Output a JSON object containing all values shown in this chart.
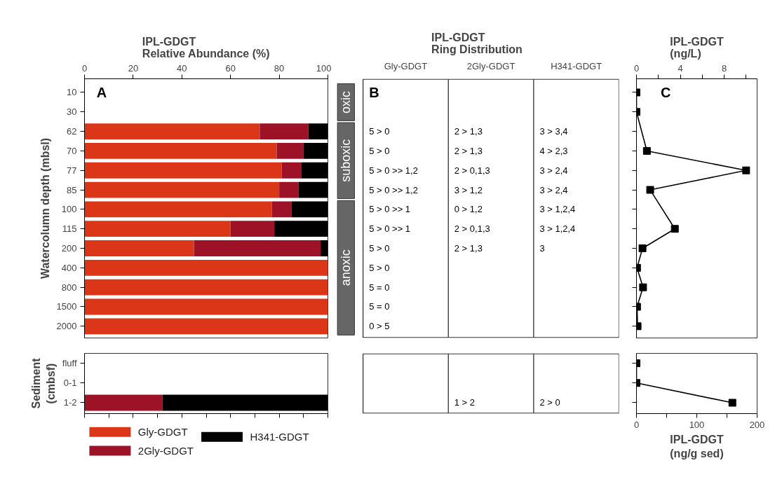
{
  "chart_data": [
    {
      "type": "bar",
      "orientation": "horizontal",
      "stacked": true,
      "title": "IPL-GDGT\nRelative Abundance (%)",
      "ylabel": "Watercolumn depth (mbsl)",
      "annotations": [
        "A"
      ],
      "categories": [
        "10",
        "30",
        "62",
        "70",
        "77",
        "85",
        "100",
        "115",
        "200",
        "400",
        "800",
        "1500",
        "2000"
      ],
      "series": [
        {
          "name": "Gly-GDGT",
          "color": "#dc3618",
          "values": [
            null,
            null,
            72,
            79,
            81,
            80,
            77,
            60,
            45,
            100,
            100,
            100,
            100
          ]
        },
        {
          "name": "2Gly-GDGT",
          "color": "#9e1228",
          "values": [
            null,
            null,
            20,
            11,
            8,
            8,
            8,
            18,
            52,
            0,
            0,
            0,
            0
          ]
        },
        {
          "name": "H341-GDGT",
          "color": "#000000",
          "values": [
            null,
            null,
            8,
            10,
            11,
            12,
            15,
            22,
            3,
            0,
            0,
            0,
            0
          ]
        }
      ],
      "xlim": [
        0,
        100
      ],
      "xticks": [
        0,
        20,
        40,
        60,
        80,
        100
      ],
      "legend": "bottom"
    },
    {
      "type": "bar",
      "orientation": "horizontal",
      "stacked": true,
      "ylabel": "Sediment\n(cmbsf)",
      "tick_labels": "y",
      "categories": [
        "fluff",
        "0-1",
        "1-2"
      ],
      "series": [
        {
          "color": "#dc3618",
          "values": [
            null,
            null,
            0
          ]
        },
        {
          "color": "#9e1228",
          "values": [
            null,
            null,
            32
          ]
        },
        {
          "color": "#000000",
          "values": [
            null,
            null,
            68
          ]
        }
      ],
      "xlim": [
        0,
        100
      ],
      "xticks": [
        {
          "value": 0,
          "label": null
        },
        {
          "value": 10,
          "label": null
        },
        {
          "value": 20,
          "label": null
        },
        {
          "value": 30,
          "label": null
        },
        {
          "value": 40,
          "label": null
        },
        {
          "value": 50,
          "label": null
        },
        {
          "value": 60,
          "label": null
        },
        {
          "value": 70,
          "label": null
        },
        {
          "value": 80,
          "label": null
        },
        {
          "value": 90,
          "label": null
        },
        {
          "value": 100,
          "label": null
        }
      ]
    },
    {
      "type": "other",
      "title": "IPL-GDGT\nRing Distribution",
      "annotations": [
        "B",
        "oxic",
        "suboxic",
        "anoxic"
      ],
      "categories": [
        "Gly-GDGT",
        "2Gly-GDGT",
        "H341-GDGT"
      ],
      "cell_labels": [
        [
          null,
          null,
          null
        ],
        [
          null,
          null,
          null
        ],
        [
          "5 > 0",
          "2 > 1,3",
          "3 > 3,4"
        ],
        [
          "5 > 0",
          "2 > 1,3",
          "4 > 2,3"
        ],
        [
          "5 > 0 >> 1,2",
          "2 > 0,1,3",
          "3 > 2,4"
        ],
        [
          "5 > 0 >> 1,2",
          "3 > 1,2",
          "3 > 2,4"
        ],
        [
          "5 > 0 >> 1",
          "0 > 1,2",
          "3 > 1,2,4"
        ],
        [
          "5 > 0 >> 1",
          "2 > 0,1,3",
          "3 > 1,2,4"
        ],
        [
          "5 > 0",
          "2 > 1,3",
          "3"
        ],
        [
          "5 > 0",
          null,
          null
        ],
        [
          "5 = 0",
          null,
          null
        ],
        [
          "5 = 0",
          null,
          null
        ],
        [
          "0 > 5",
          null,
          null
        ]
      ]
    },
    {
      "type": "other",
      "cell_labels": [
        [
          null,
          null,
          null
        ],
        [
          null,
          null,
          null
        ],
        [
          null,
          "1 > 2",
          "2 > 0"
        ]
      ]
    },
    {
      "type": "line",
      "orientation": "horizontal",
      "title": "IPL-GDGT\n(ng/L)",
      "annotations": [
        "C"
      ],
      "marker": "square",
      "tick_labels": "x",
      "categories": [
        null,
        null,
        null,
        null,
        null,
        null,
        null,
        null,
        null,
        null,
        null,
        null,
        null
      ],
      "series": [
        {
          "color": "#000000",
          "values": [
            0,
            0,
            null,
            0.95,
            10.0,
            1.25,
            null,
            3.5,
            0.55,
            0.05,
            0.6,
            0.05,
            0.1
          ]
        }
      ],
      "xlim": [
        0,
        11
      ],
      "xticks": [
        0,
        {
          "value": 2,
          "label": null
        },
        4,
        {
          "value": 6,
          "label": null
        },
        8,
        {
          "value": 10,
          "label": null
        }
      ]
    },
    {
      "type": "line",
      "orientation": "horizontal",
      "xlabel": "IPL-GDGT\n(ng/g sed)",
      "marker": "square",
      "tick_labels": "x",
      "categories": [
        null,
        null,
        null
      ],
      "series": [
        {
          "color": "#000000",
          "values": [
            0,
            0,
            159
          ]
        }
      ],
      "xlim": [
        0,
        200
      ],
      "xticks": [
        0,
        {
          "value": 50,
          "label": null
        },
        100,
        {
          "value": 150,
          "label": null
        },
        200
      ]
    }
  ]
}
